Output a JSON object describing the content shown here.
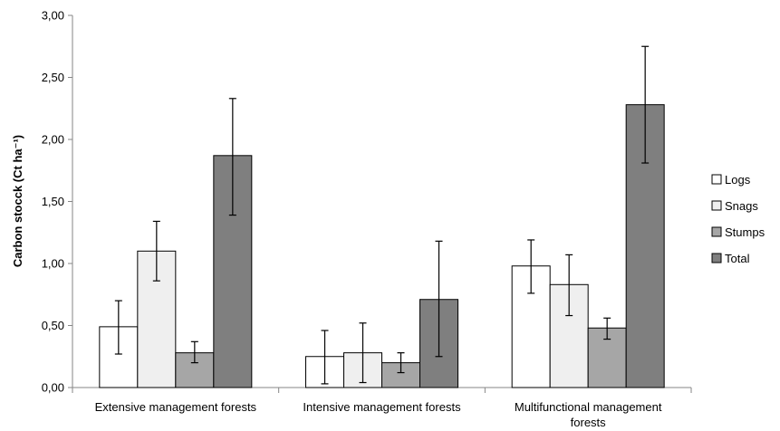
{
  "chart_data": {
    "type": "bar",
    "title": "",
    "xlabel": "",
    "ylabel": "Carbon stocck (Ct  ha⁻¹)",
    "ylim": [
      0,
      3
    ],
    "yticks": [
      "0,00",
      "0,50",
      "1,00",
      "1,50",
      "2,00",
      "2,50",
      "3,00"
    ],
    "grid": false,
    "legend_position": "right",
    "categories": [
      [
        "Extensive management forests"
      ],
      [
        "Intensive management forests"
      ],
      [
        "Multifunctional management",
        "forests"
      ]
    ],
    "series": [
      {
        "name": "Logs",
        "color": "#ffffff",
        "values": [
          0.49,
          0.25,
          0.98
        ],
        "err_low": [
          0.27,
          0.03,
          0.76
        ],
        "err_high": [
          0.7,
          0.46,
          1.19
        ]
      },
      {
        "name": "Snags",
        "color": "#efefef",
        "values": [
          1.1,
          0.28,
          0.83
        ],
        "err_low": [
          0.86,
          0.04,
          0.58
        ],
        "err_high": [
          1.34,
          0.52,
          1.07
        ]
      },
      {
        "name": "Stumps",
        "color": "#a6a6a6",
        "values": [
          0.28,
          0.2,
          0.48
        ],
        "err_low": [
          0.2,
          0.12,
          0.39
        ],
        "err_high": [
          0.37,
          0.28,
          0.56
        ]
      },
      {
        "name": "Total",
        "color": "#7f7f7f",
        "values": [
          1.87,
          0.71,
          2.28
        ],
        "err_low": [
          1.39,
          0.25,
          1.81
        ],
        "err_high": [
          2.33,
          1.18,
          2.75
        ]
      }
    ]
  }
}
